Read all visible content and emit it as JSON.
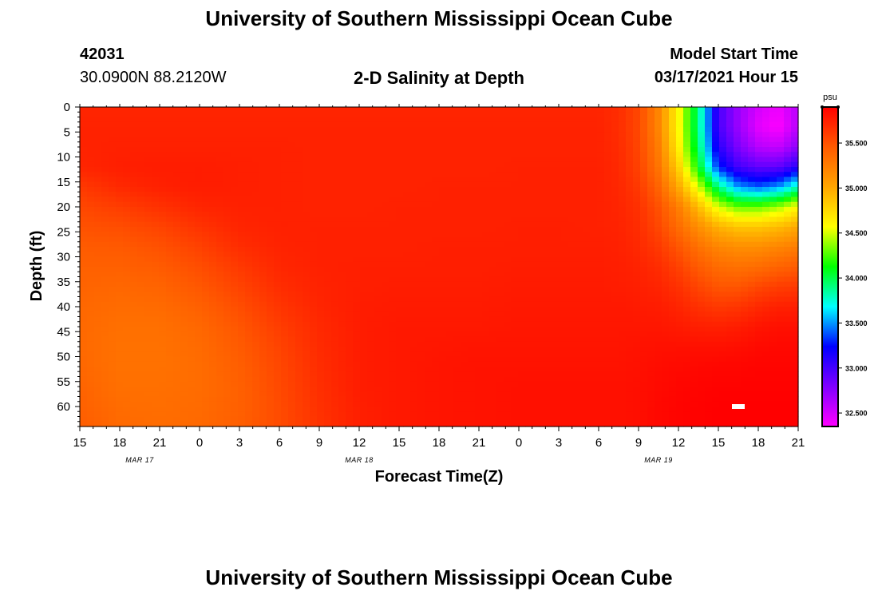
{
  "page": {
    "title_top": "University of Southern Mississippi Ocean Cube",
    "title_bottom": "University of Southern Mississippi Ocean Cube",
    "station_id": "42031",
    "station_coords": "30.0900N 88.2120W",
    "plot_title": "2-D Salinity at Depth",
    "model_start_label": "Model Start Time",
    "model_start_value": "03/17/2021 Hour 15"
  },
  "colors": {
    "ramp": [
      "#ff00ff",
      "#8000ff",
      "#0000ff",
      "#00ffff",
      "#00ff00",
      "#ffff00",
      "#ffa500",
      "#ff5a00",
      "#ff0000"
    ],
    "marker": "#ffffff"
  },
  "chart_data": {
    "type": "heatmap",
    "title": "2-D Salinity at Depth",
    "xlabel": "Forecast Time(Z)",
    "ylabel": "Depth (ft)",
    "x_tick_labels": [
      "15",
      "18",
      "21",
      "0",
      "3",
      "6",
      "9",
      "12",
      "15",
      "18",
      "21",
      "0",
      "3",
      "6",
      "9",
      "12",
      "15",
      "18",
      "21"
    ],
    "x_range_hours": [
      0,
      54
    ],
    "x_tick_step_hours": 3,
    "date_labels": [
      {
        "text": "MAR 17",
        "hour": 4.5
      },
      {
        "text": "MAR 18",
        "hour": 21
      },
      {
        "text": "MAR 19",
        "hour": 43.5
      }
    ],
    "y_ticks": [
      0,
      5,
      10,
      15,
      20,
      25,
      30,
      35,
      40,
      45,
      50,
      55,
      60
    ],
    "y_range_ft": [
      0,
      64
    ],
    "colorbar": {
      "unit": "psu",
      "min": 32.35,
      "max": 35.9,
      "tick_values": [
        32.5,
        33.0,
        33.5,
        34.0,
        34.5,
        35.0,
        35.5
      ],
      "tick_labels": [
        "32.500",
        "33.000",
        "33.500",
        "34.000",
        "34.500",
        "35.000",
        "35.500"
      ]
    },
    "field": {
      "times_hours": [
        0,
        3,
        6,
        9,
        12,
        15,
        18,
        21,
        24,
        27,
        30,
        33,
        36,
        39,
        40.5,
        42,
        43.5,
        45,
        46.5,
        48,
        49.5,
        51,
        52.5,
        54
      ],
      "depths_ft": [
        0,
        4,
        8,
        12,
        16,
        20,
        24,
        28,
        32,
        36,
        40,
        44,
        48,
        52,
        56,
        60,
        64
      ],
      "salinity_psu": [
        [
          35.72,
          35.72,
          35.72,
          35.72,
          35.72,
          35.72,
          35.72,
          35.72,
          35.72,
          35.72,
          35.72,
          35.72,
          35.72,
          35.72,
          35.68,
          35.55,
          35.2,
          34.6,
          33.9,
          33.0,
          32.7,
          32.5,
          32.4,
          32.6
        ],
        [
          35.73,
          35.73,
          35.73,
          35.73,
          35.73,
          35.73,
          35.73,
          35.73,
          35.73,
          35.73,
          35.73,
          35.73,
          35.73,
          35.73,
          35.68,
          35.55,
          35.2,
          34.6,
          33.9,
          33.0,
          32.7,
          32.45,
          32.35,
          32.6
        ],
        [
          35.73,
          35.74,
          35.74,
          35.74,
          35.74,
          35.74,
          35.73,
          35.73,
          35.73,
          35.73,
          35.73,
          35.73,
          35.73,
          35.73,
          35.69,
          35.56,
          35.25,
          34.65,
          33.95,
          33.1,
          32.8,
          32.6,
          32.55,
          32.75
        ],
        [
          35.72,
          35.75,
          35.76,
          35.76,
          35.75,
          35.74,
          35.73,
          35.73,
          35.73,
          35.73,
          35.73,
          35.74,
          35.74,
          35.74,
          35.7,
          35.58,
          35.3,
          34.8,
          34.1,
          33.3,
          33.0,
          32.9,
          32.9,
          33.1
        ],
        [
          35.62,
          35.7,
          35.74,
          35.76,
          35.75,
          35.74,
          35.73,
          35.73,
          35.73,
          35.74,
          35.74,
          35.74,
          35.74,
          35.74,
          35.71,
          35.62,
          35.4,
          35.0,
          34.5,
          33.9,
          33.5,
          33.4,
          33.5,
          33.8
        ],
        [
          35.55,
          35.6,
          35.66,
          35.72,
          35.74,
          35.74,
          35.73,
          35.73,
          35.74,
          35.74,
          35.74,
          35.74,
          35.74,
          35.74,
          35.72,
          35.66,
          35.5,
          35.25,
          34.9,
          34.5,
          34.3,
          34.3,
          34.4,
          34.6
        ],
        [
          35.5,
          35.52,
          35.57,
          35.65,
          35.72,
          35.74,
          35.74,
          35.74,
          35.74,
          35.74,
          35.74,
          35.75,
          35.75,
          35.74,
          35.73,
          35.68,
          35.55,
          35.35,
          35.15,
          34.95,
          34.85,
          34.85,
          34.9,
          35.0
        ],
        [
          35.45,
          35.46,
          35.5,
          35.58,
          35.68,
          35.73,
          35.74,
          35.74,
          35.74,
          35.75,
          35.75,
          35.75,
          35.75,
          35.75,
          35.74,
          35.7,
          35.62,
          35.48,
          35.32,
          35.2,
          35.15,
          35.15,
          35.2,
          35.25
        ],
        [
          35.42,
          35.42,
          35.45,
          35.52,
          35.62,
          35.71,
          35.74,
          35.75,
          35.75,
          35.75,
          35.75,
          35.76,
          35.76,
          35.76,
          35.75,
          35.73,
          35.68,
          35.58,
          35.45,
          35.35,
          35.32,
          35.35,
          35.4,
          35.45
        ],
        [
          35.4,
          35.38,
          35.4,
          35.47,
          35.57,
          35.68,
          35.73,
          35.75,
          35.76,
          35.76,
          35.76,
          35.77,
          35.77,
          35.77,
          35.76,
          35.75,
          35.72,
          35.66,
          35.56,
          35.48,
          35.48,
          35.55,
          35.6,
          35.62
        ],
        [
          35.38,
          35.35,
          35.36,
          35.42,
          35.52,
          35.64,
          35.72,
          35.76,
          35.77,
          35.77,
          35.77,
          35.78,
          35.78,
          35.78,
          35.78,
          35.77,
          35.76,
          35.72,
          35.66,
          35.62,
          35.64,
          35.7,
          35.74,
          35.75
        ],
        [
          35.37,
          35.33,
          35.33,
          35.38,
          35.48,
          35.6,
          35.7,
          35.76,
          35.78,
          35.78,
          35.78,
          35.79,
          35.79,
          35.79,
          35.79,
          35.79,
          35.79,
          35.77,
          35.75,
          35.74,
          35.76,
          35.8,
          35.82,
          35.82
        ],
        [
          35.37,
          35.32,
          35.32,
          35.36,
          35.45,
          35.57,
          35.69,
          35.76,
          35.78,
          35.79,
          35.8,
          35.8,
          35.8,
          35.8,
          35.8,
          35.81,
          35.82,
          35.82,
          35.82,
          35.82,
          35.83,
          35.85,
          35.86,
          35.86
        ],
        [
          35.38,
          35.32,
          35.32,
          35.35,
          35.43,
          35.55,
          35.68,
          35.76,
          35.78,
          35.8,
          35.81,
          35.81,
          35.81,
          35.81,
          35.81,
          35.82,
          35.84,
          35.85,
          35.86,
          35.87,
          35.87,
          35.88,
          35.88,
          35.88
        ],
        [
          35.4,
          35.33,
          35.33,
          35.35,
          35.42,
          35.54,
          35.67,
          35.76,
          35.78,
          35.8,
          35.81,
          35.82,
          35.82,
          35.82,
          35.82,
          35.83,
          35.85,
          35.87,
          35.88,
          35.89,
          35.89,
          35.89,
          35.89,
          35.89
        ],
        [
          35.42,
          35.35,
          35.34,
          35.36,
          35.42,
          35.53,
          35.66,
          35.75,
          35.78,
          35.8,
          35.81,
          35.82,
          35.82,
          35.82,
          35.82,
          35.83,
          35.86,
          35.88,
          35.89,
          35.9,
          35.9,
          35.9,
          35.9,
          35.9
        ],
        [
          35.44,
          35.37,
          35.35,
          35.37,
          35.43,
          35.53,
          35.65,
          35.75,
          35.78,
          35.8,
          35.81,
          35.82,
          35.82,
          35.82,
          35.82,
          35.83,
          35.86,
          35.88,
          35.89,
          35.9,
          35.9,
          35.9,
          35.9,
          35.9
        ]
      ]
    },
    "marker": {
      "hour": 49.5,
      "depth_ft": 60
    }
  }
}
